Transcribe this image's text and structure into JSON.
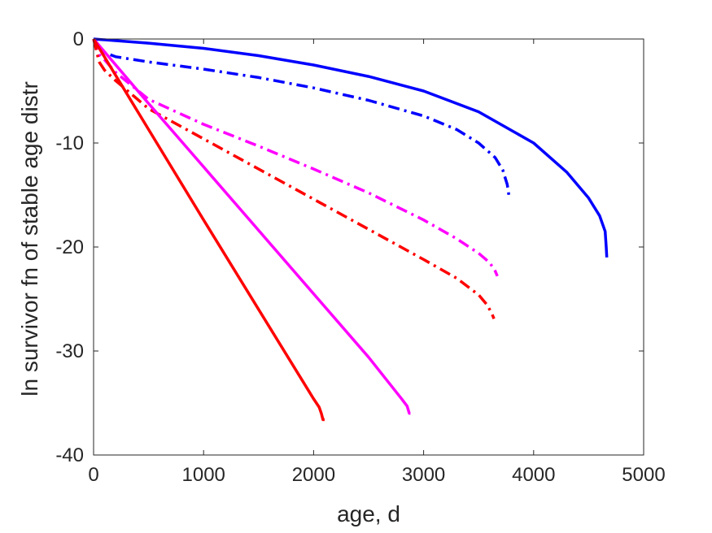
{
  "chart_data": {
    "type": "line",
    "title": "",
    "xlabel": "age, d",
    "ylabel": "ln survivor fn of stable age distr",
    "xlim": [
      0,
      5000
    ],
    "ylim": [
      -40,
      0
    ],
    "xticks": [
      0,
      1000,
      2000,
      3000,
      4000,
      5000
    ],
    "yticks": [
      0,
      -10,
      -20,
      -30,
      -40
    ],
    "xtick_labels": [
      "0",
      "1000",
      "2000",
      "3000",
      "4000",
      "5000"
    ],
    "ytick_labels": [
      "0",
      "-10",
      "-20",
      "-30",
      "-40"
    ],
    "grid": false,
    "box": true,
    "series": [
      {
        "color": "#0000ff",
        "style": "solid",
        "x": [
          0,
          500,
          1000,
          1500,
          2000,
          2500,
          3000,
          3500,
          4000,
          4300,
          4500,
          4600,
          4650,
          4660,
          4665
        ],
        "y": [
          0,
          -0.4,
          -0.9,
          -1.6,
          -2.5,
          -3.6,
          -5.0,
          -7.0,
          -10.0,
          -12.8,
          -15.3,
          -17.0,
          -18.5,
          -20.0,
          -21.0
        ]
      },
      {
        "color": "#0000ff",
        "style": "dashdot",
        "x": [
          0,
          100,
          200,
          500,
          1000,
          1500,
          2000,
          2500,
          3000,
          3300,
          3500,
          3650,
          3720,
          3760,
          3780
        ],
        "y": [
          0,
          -1.3,
          -1.7,
          -2.2,
          -2.9,
          -3.7,
          -4.7,
          -5.9,
          -7.4,
          -8.7,
          -10.0,
          -11.4,
          -12.6,
          -14.0,
          -15.4
        ]
      },
      {
        "color": "#ff00ff",
        "style": "dashdot",
        "x": [
          0,
          50,
          100,
          200,
          500,
          1000,
          1500,
          2000,
          2500,
          3000,
          3300,
          3500,
          3600,
          3650,
          3670
        ],
        "y": [
          0,
          -1.5,
          -2.0,
          -3.2,
          -5.8,
          -8.2,
          -10.3,
          -12.5,
          -14.8,
          -17.4,
          -19.2,
          -20.6,
          -21.5,
          -22.3,
          -22.8
        ]
      },
      {
        "color": "#ff0000",
        "style": "dashdot",
        "x": [
          0,
          50,
          100,
          200,
          500,
          1000,
          1500,
          2000,
          2500,
          3000,
          3300,
          3500,
          3580,
          3620,
          3640
        ],
        "y": [
          0,
          -2.2,
          -3.0,
          -4.0,
          -6.7,
          -9.6,
          -12.5,
          -15.4,
          -18.3,
          -21.2,
          -23.0,
          -24.6,
          -25.6,
          -26.4,
          -26.9
        ]
      },
      {
        "color": "#ff00ff",
        "style": "solid",
        "x": [
          0,
          500,
          1000,
          1500,
          2000,
          2500,
          2800,
          2850,
          2870,
          2880
        ],
        "y": [
          0,
          -6.2,
          -12.3,
          -18.4,
          -24.5,
          -30.6,
          -34.6,
          -35.3,
          -36.0,
          -36.0
        ]
      },
      {
        "color": "#ff0000",
        "style": "solid",
        "x": [
          0,
          500,
          1000,
          1500,
          2000,
          2050,
          2070,
          2085,
          2100
        ],
        "y": [
          0,
          -8.7,
          -17.4,
          -26.0,
          -34.6,
          -35.4,
          -36.0,
          -36.6,
          -36.6
        ]
      }
    ]
  }
}
